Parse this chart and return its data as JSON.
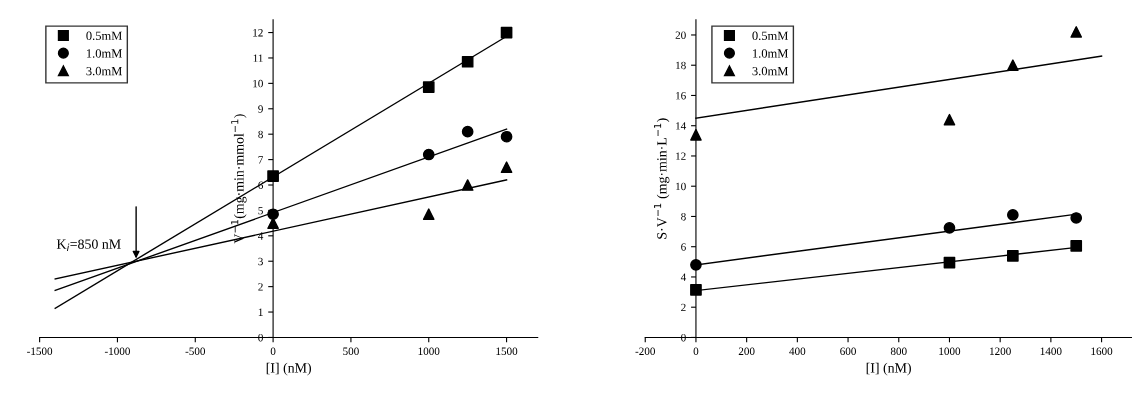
{
  "chart_data": [
    {
      "type": "scatter",
      "xlabel": "[I] (nM)",
      "ylabel": "V$^{−1}$(mg·min·mmol$^{−1}$)",
      "xlim": [
        -1500,
        1700
      ],
      "ylim": [
        0,
        12.5
      ],
      "xticks": [
        -1500,
        -1000,
        -500,
        0,
        500,
        1000,
        1500
      ],
      "yticks": [
        0,
        1,
        2,
        3,
        4,
        5,
        6,
        7,
        8,
        9,
        10,
        11,
        12
      ],
      "legend": "top left",
      "grid": false,
      "annotations": [
        {
          "text": "K$_{i}$=850 nM",
          "x": -880,
          "y": 3.0
        }
      ],
      "series": [
        {
          "name": "0.5mM",
          "color": "#000000",
          "marker": "square",
          "x": [
            0,
            1000,
            1250,
            1500
          ],
          "values": [
            6.35,
            9.85,
            10.85,
            12.0
          ]
        },
        {
          "name": "1.0mM",
          "color": "#000000",
          "marker": "circle",
          "x": [
            0,
            1000,
            1250,
            1500
          ],
          "values": [
            4.85,
            7.2,
            8.1,
            7.9
          ]
        },
        {
          "name": "3.0mM",
          "color": "#000000",
          "marker": "triangle",
          "x": [
            0,
            1000,
            1250,
            1500
          ],
          "values": [
            4.5,
            4.85,
            6.0,
            6.7
          ]
        },
        {
          "type": "line",
          "color": "#000000",
          "x": [
            -1400,
            1500
          ],
          "values": [
            1.15,
            11.85
          ]
        },
        {
          "type": "line",
          "color": "#000000",
          "x": [
            -1400,
            1500
          ],
          "values": [
            1.85,
            8.2
          ]
        },
        {
          "type": "line",
          "color": "#000000",
          "x": [
            -1400,
            1500
          ],
          "values": [
            2.3,
            6.2
          ]
        }
      ]
    },
    {
      "type": "scatter",
      "xlabel": "[I] (nM)",
      "ylabel": "S·V$^{−1}$ (mg·min·L$^{−1}$)",
      "xlim": [
        -200,
        1720
      ],
      "ylim": [
        0,
        21
      ],
      "xticks": [
        -200,
        0,
        200,
        400,
        600,
        800,
        1000,
        1200,
        1400,
        1600
      ],
      "yticks": [
        0,
        2,
        4,
        6,
        8,
        10,
        12,
        14,
        16,
        18,
        20
      ],
      "legend": "top left",
      "grid": false,
      "series": [
        {
          "name": "0.5mM",
          "color": "#000000",
          "marker": "square",
          "x": [
            0,
            1000,
            1250,
            1500
          ],
          "values": [
            3.15,
            4.95,
            5.4,
            6.05
          ]
        },
        {
          "name": "1.0mM",
          "color": "#000000",
          "marker": "circle",
          "x": [
            0,
            1000,
            1250,
            1500
          ],
          "values": [
            4.8,
            7.25,
            8.1,
            7.9
          ]
        },
        {
          "name": "3.0mM",
          "color": "#000000",
          "marker": "triangle",
          "x": [
            0,
            1000,
            1250,
            1500
          ],
          "values": [
            13.4,
            14.4,
            18.0,
            20.2
          ]
        },
        {
          "type": "line",
          "color": "#000000",
          "x": [
            0,
            1500
          ],
          "values": [
            3.1,
            5.95
          ]
        },
        {
          "type": "line",
          "color": "#000000",
          "x": [
            0,
            1500
          ],
          "values": [
            4.8,
            8.15
          ]
        },
        {
          "type": "line",
          "color": "#000000",
          "x": [
            0,
            1600
          ],
          "values": [
            14.5,
            18.6
          ]
        }
      ]
    }
  ]
}
